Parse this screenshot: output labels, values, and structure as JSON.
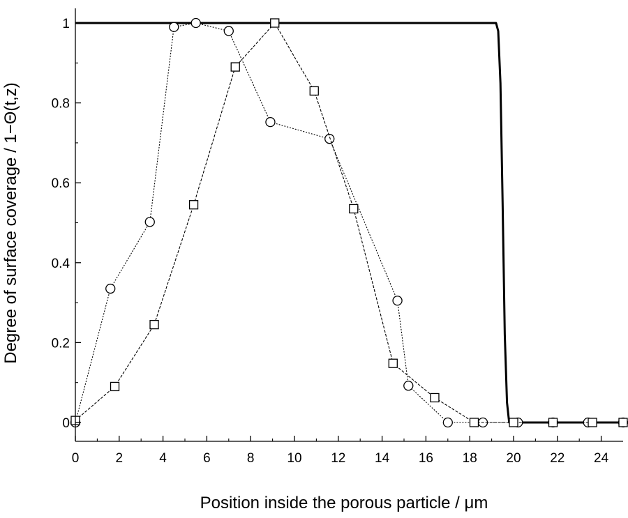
{
  "chart_data": {
    "type": "line",
    "title": "",
    "xlabel": "Position inside the porous particle / μm",
    "ylabel": "Degree of surface coverage / 1−Θ(t,z)",
    "xlim": [
      0,
      25
    ],
    "ylim": [
      0,
      1
    ],
    "xticks": [
      "0",
      "2",
      "4",
      "6",
      "8",
      "10",
      "12",
      "14",
      "16",
      "18",
      "20",
      "22",
      "24"
    ],
    "yticks": [
      "0",
      "0.2",
      "0.4",
      "0.6",
      "0.8",
      "1"
    ],
    "grid": false,
    "legend": "none",
    "series": [
      {
        "marker": "none",
        "line_style": "solid",
        "x": [
          0,
          19.2,
          19.3,
          19.4,
          19.5,
          19.6,
          19.7,
          19.8,
          25
        ],
        "y": [
          1,
          1,
          0.98,
          0.85,
          0.55,
          0.22,
          0.05,
          0,
          0
        ]
      },
      {
        "marker": "circle",
        "line_style": "dotted",
        "x": [
          0,
          1.6,
          3.4,
          4.5,
          5.5,
          7.0,
          8.9,
          11.6,
          14.7,
          15.2,
          17.0,
          18.6,
          20.2,
          21.8,
          23.4,
          25.0
        ],
        "y": [
          0,
          0.335,
          0.502,
          0.99,
          1.0,
          0.98,
          0.752,
          0.71,
          0.305,
          0.092,
          0,
          0,
          0,
          0,
          0,
          0
        ]
      },
      {
        "marker": "square",
        "line_style": "dashed",
        "x": [
          0,
          1.8,
          3.6,
          5.4,
          7.3,
          9.1,
          10.9,
          12.7,
          14.5,
          16.4,
          18.2,
          20.0,
          21.8,
          23.6,
          25.0
        ],
        "y": [
          0.005,
          0.09,
          0.245,
          0.545,
          0.89,
          1.0,
          0.83,
          0.535,
          0.148,
          0.062,
          0,
          0,
          0,
          0,
          0
        ]
      }
    ]
  }
}
